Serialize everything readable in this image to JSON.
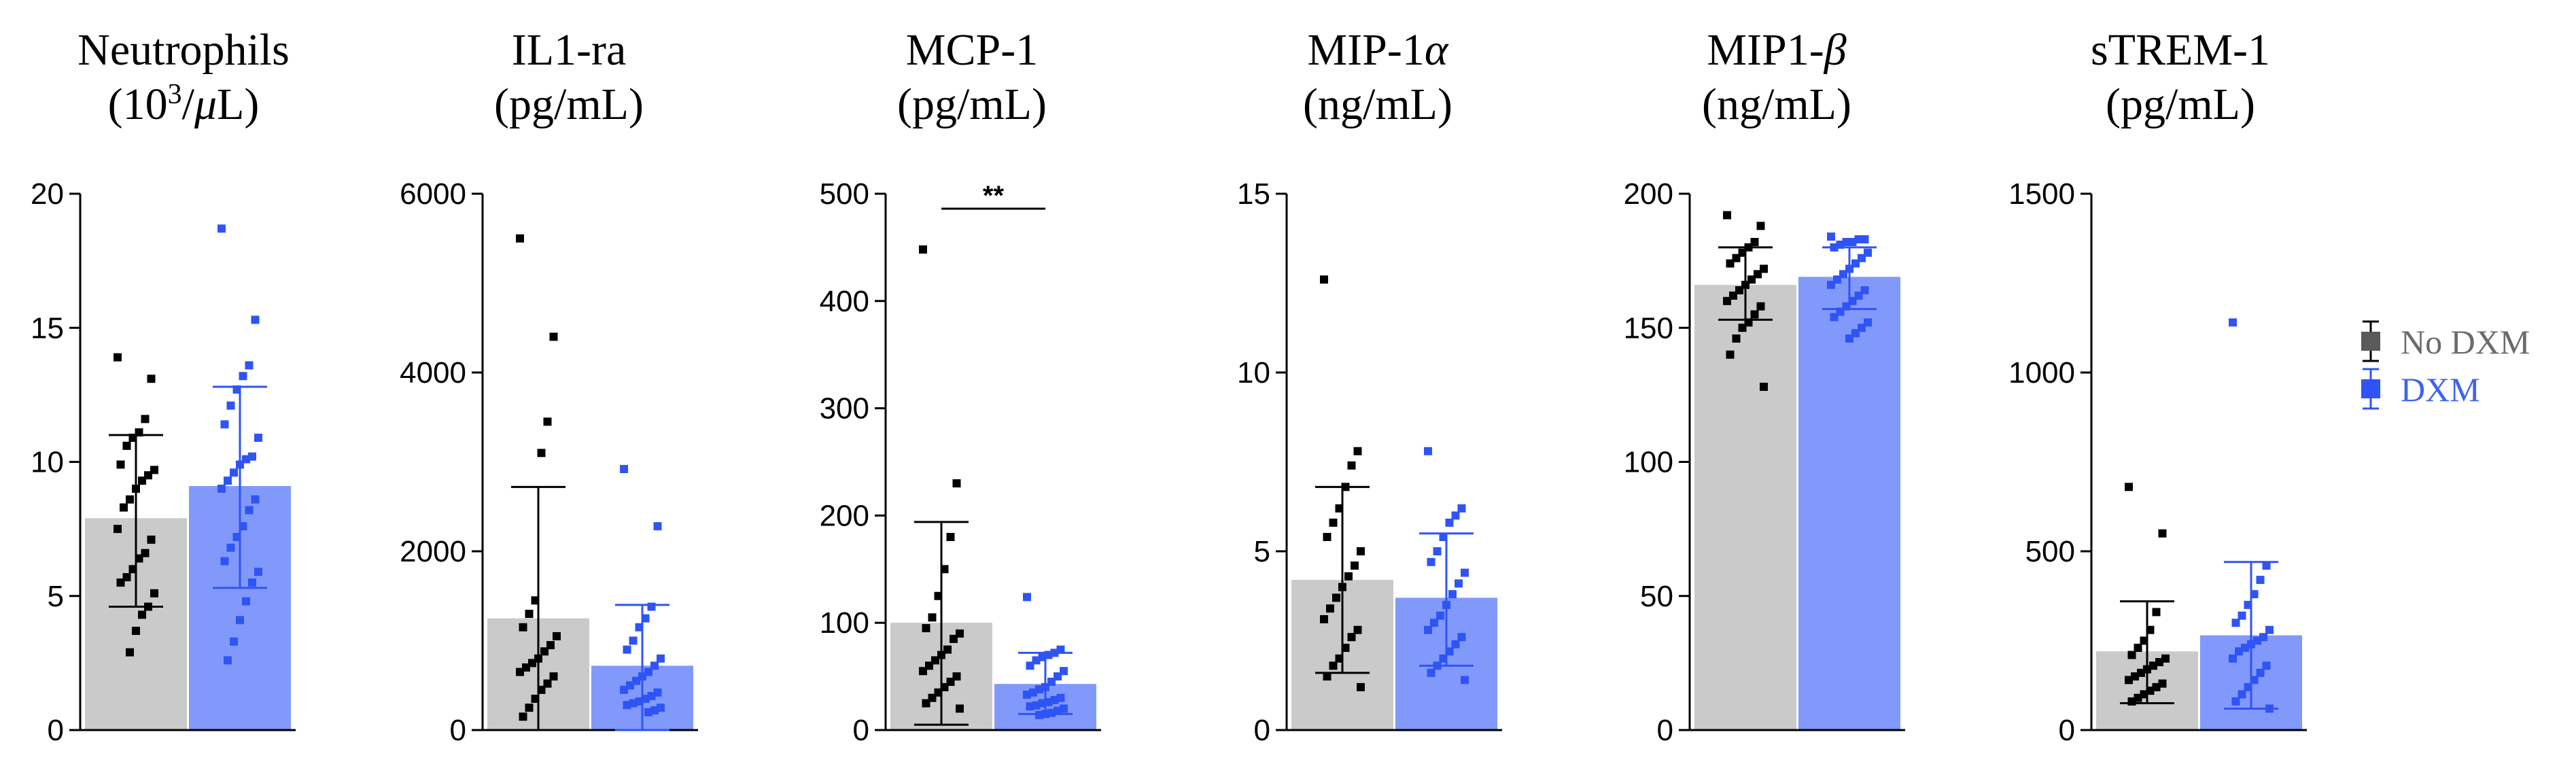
{
  "colors": {
    "nodxm_bar": "#cacaca",
    "nodxm_point": "#000000",
    "dxm_bar": "#8299fc",
    "dxm_point": "#2f54f5",
    "axis": "#000000",
    "legend_nodxm_text": "#6b6b6b",
    "legend_dxm_text": "#3f62f0"
  },
  "legend": [
    {
      "label": "No DXM",
      "series": "nodxm"
    },
    {
      "label": "DXM",
      "series": "dxm"
    }
  ],
  "chart_data": [
    {
      "type": "bar",
      "title_line1": "Neutrophils",
      "title_line2_prefix": "(10",
      "title_line2_sup": "3",
      "title_line2_suffix": "/",
      "title_line2_mu": "μ",
      "title_line2_end": "L)",
      "ylim": [
        0,
        20
      ],
      "yticks": [
        0,
        5,
        10,
        15,
        20
      ],
      "categories": [
        "No DXM",
        "DXM"
      ],
      "series": [
        {
          "name": "No DXM",
          "mean": 7.9,
          "sd_low": 4.6,
          "sd_high": 11.0,
          "points": [
            13.9,
            13.1,
            11.6,
            11.1,
            10.9,
            10.6,
            9.9,
            9.7,
            9.5,
            9.3,
            9.0,
            8.6,
            8.3,
            7.5,
            7.1,
            6.6,
            6.4,
            6.0,
            5.7,
            5.5,
            5.1,
            4.6,
            4.3,
            3.7,
            2.9
          ]
        },
        {
          "name": "DXM",
          "mean": 9.1,
          "sd_low": 5.3,
          "sd_high": 12.8,
          "points": [
            18.7,
            15.3,
            13.6,
            13.2,
            12.7,
            12.1,
            11.4,
            10.9,
            10.2,
            10.1,
            9.9,
            9.6,
            9.3,
            9.0,
            8.6,
            8.2,
            7.6,
            7.2,
            6.8,
            6.3,
            5.9,
            5.5,
            4.8,
            4.1,
            3.3,
            2.6
          ]
        }
      ],
      "significance": ""
    },
    {
      "type": "bar",
      "title_line1": "IL1-ra",
      "title_line2": "(pg/mL)",
      "ylim": [
        0,
        6000
      ],
      "yticks": [
        0,
        2000,
        4000,
        6000
      ],
      "categories": [
        "No DXM",
        "DXM"
      ],
      "series": [
        {
          "name": "No DXM",
          "mean": 1250,
          "sd_low": 0,
          "sd_high": 2720,
          "points": [
            5500,
            4400,
            3450,
            3100,
            1450,
            1300,
            1150,
            1050,
            950,
            880,
            800,
            750,
            700,
            650,
            600,
            520,
            450,
            350,
            250,
            150
          ]
        },
        {
          "name": "DXM",
          "mean": 720,
          "sd_low": 0,
          "sd_high": 1400,
          "points": [
            2920,
            2280,
            1380,
            1250,
            1150,
            1000,
            900,
            800,
            720,
            650,
            600,
            550,
            500,
            450,
            420,
            380,
            350,
            320,
            300,
            280,
            250,
            220,
            200
          ]
        }
      ],
      "significance": ""
    },
    {
      "type": "bar",
      "title_line1": "MCP-1",
      "title_line2": "(pg/mL)",
      "ylim": [
        0,
        500
      ],
      "yticks": [
        0,
        100,
        200,
        300,
        400,
        500
      ],
      "categories": [
        "No DXM",
        "DXM"
      ],
      "series": [
        {
          "name": "No DXM",
          "mean": 100,
          "sd_low": 5,
          "sd_high": 194,
          "points": [
            448,
            230,
            180,
            150,
            125,
            105,
            95,
            90,
            85,
            75,
            70,
            65,
            60,
            55,
            50,
            45,
            40,
            35,
            30,
            25,
            20
          ]
        },
        {
          "name": "DXM",
          "mean": 43,
          "sd_low": 15,
          "sd_high": 72,
          "points": [
            124,
            75,
            72,
            70,
            68,
            65,
            60,
            55,
            50,
            45,
            40,
            38,
            35,
            33,
            30,
            28,
            26,
            25,
            23,
            22,
            20,
            18,
            16,
            15,
            14
          ]
        }
      ],
      "significance": "**"
    },
    {
      "type": "bar",
      "title_line1": "MIP-1",
      "title_line1_greek": "α",
      "title_line2": "(ng/mL)",
      "ylim": [
        0,
        15
      ],
      "yticks": [
        0,
        5,
        10,
        15
      ],
      "categories": [
        "No DXM",
        "DXM"
      ],
      "series": [
        {
          "name": "No DXM",
          "mean": 4.2,
          "sd_low": 1.6,
          "sd_high": 6.8,
          "points": [
            12.6,
            7.8,
            7.4,
            6.8,
            6.2,
            5.8,
            5.4,
            5.0,
            4.6,
            4.3,
            4.0,
            3.7,
            3.4,
            3.1,
            2.8,
            2.6,
            2.3,
            2.0,
            1.8,
            1.5,
            1.2
          ]
        },
        {
          "name": "DXM",
          "mean": 3.7,
          "sd_low": 1.8,
          "sd_high": 5.5,
          "points": [
            7.8,
            6.2,
            6.0,
            5.8,
            5.4,
            5.0,
            4.7,
            4.4,
            4.1,
            3.8,
            3.5,
            3.2,
            3.0,
            2.8,
            2.6,
            2.4,
            2.2,
            2.0,
            1.8,
            1.6,
            1.4
          ]
        }
      ],
      "significance": ""
    },
    {
      "type": "bar",
      "title_line1": "MIP1-",
      "title_line1_greek": "β",
      "title_line2": "(ng/mL)",
      "ylim": [
        0,
        200
      ],
      "yticks": [
        0,
        50,
        100,
        150,
        200
      ],
      "categories": [
        "No DXM",
        "DXM"
      ],
      "series": [
        {
          "name": "No DXM",
          "mean": 166,
          "sd_low": 153,
          "sd_high": 180,
          "points": [
            192,
            188,
            182,
            180,
            178,
            176,
            174,
            172,
            170,
            168,
            166,
            164,
            162,
            160,
            158,
            155,
            152,
            150,
            146,
            140,
            128
          ]
        },
        {
          "name": "DXM",
          "mean": 169,
          "sd_low": 157,
          "sd_high": 180,
          "points": [
            184,
            183,
            183,
            182,
            182,
            181,
            180,
            178,
            176,
            174,
            172,
            170,
            168,
            166,
            164,
            162,
            160,
            158,
            156,
            154,
            152,
            150,
            148,
            146
          ]
        }
      ],
      "significance": ""
    },
    {
      "type": "bar",
      "title_line1": "sTREM-1",
      "title_line2": "(pg/mL)",
      "ylim": [
        0,
        1500
      ],
      "yticks": [
        0,
        500,
        1000,
        1500
      ],
      "categories": [
        "No DXM",
        "DXM"
      ],
      "series": [
        {
          "name": "No DXM",
          "mean": 220,
          "sd_low": 75,
          "sd_high": 360,
          "points": [
            680,
            550,
            330,
            280,
            250,
            230,
            210,
            200,
            190,
            180,
            170,
            160,
            150,
            140,
            130,
            120,
            110,
            100,
            90,
            80
          ]
        },
        {
          "name": "DXM",
          "mean": 265,
          "sd_low": 60,
          "sd_high": 470,
          "points": [
            1140,
            460,
            420,
            380,
            350,
            320,
            300,
            280,
            260,
            250,
            240,
            230,
            220,
            200,
            180,
            160,
            140,
            120,
            100,
            80,
            60
          ]
        }
      ],
      "significance": ""
    }
  ]
}
